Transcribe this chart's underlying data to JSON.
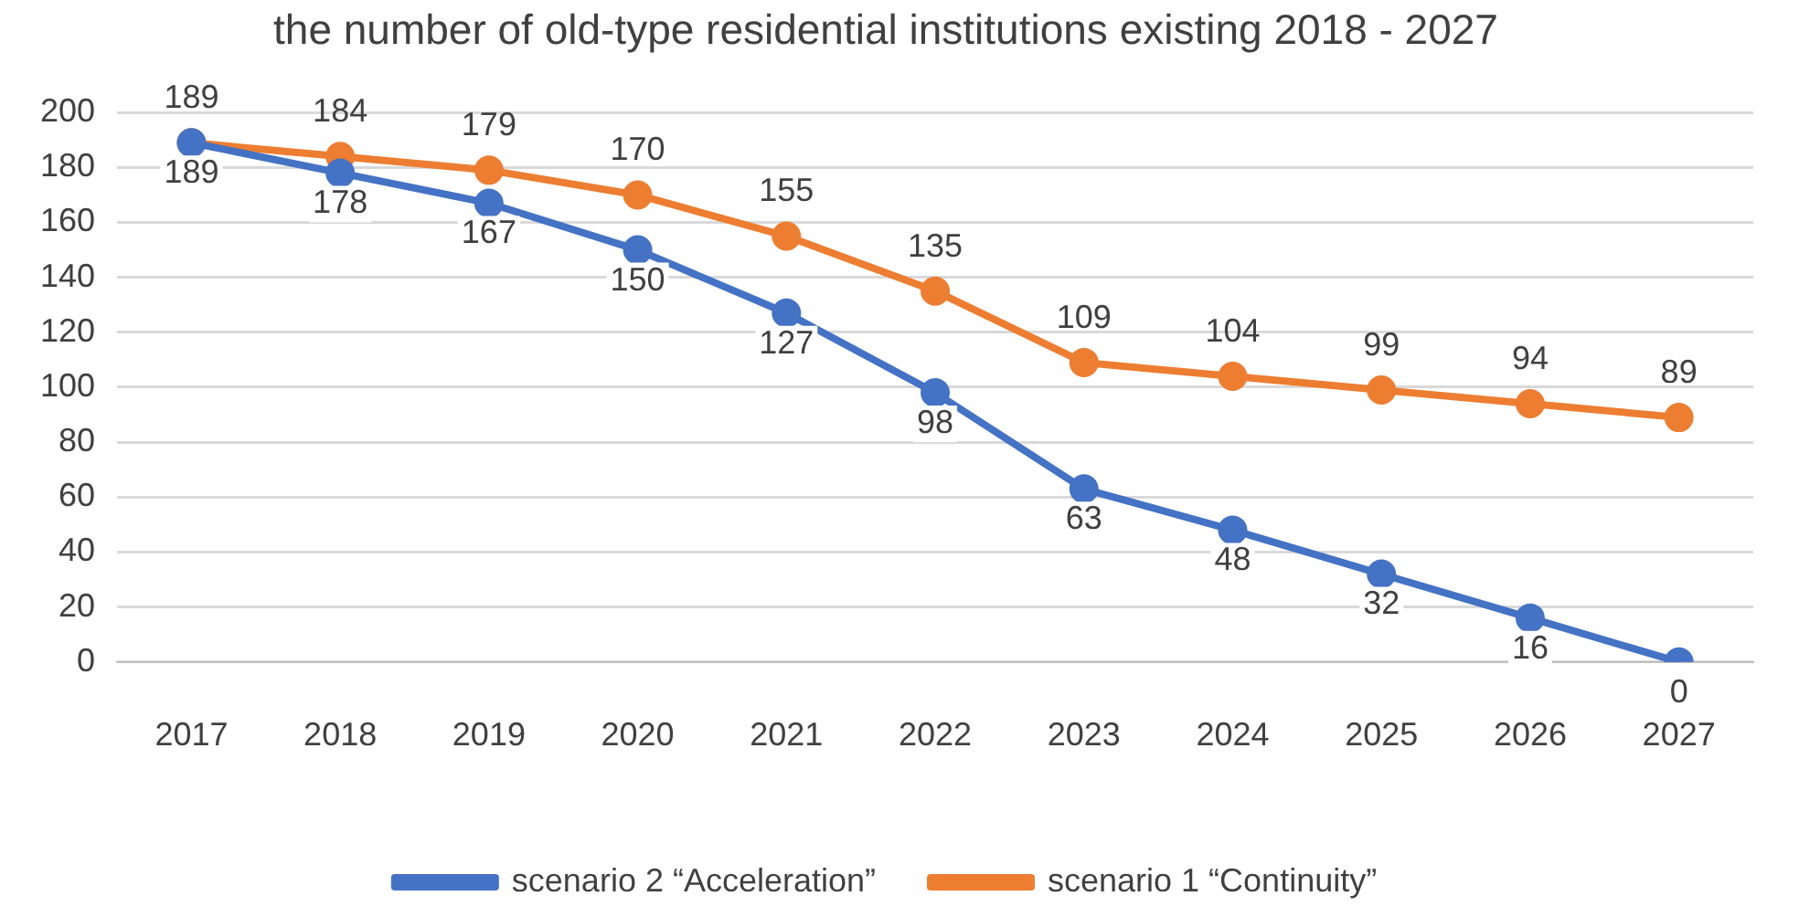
{
  "chart_data": {
    "type": "line",
    "title": "the number of old-type residential institutions existing 2018 - 2027",
    "categories": [
      "2017",
      "2018",
      "2019",
      "2020",
      "2021",
      "2022",
      "2023",
      "2024",
      "2025",
      "2026",
      "2027"
    ],
    "series": [
      {
        "name": "scenario 2 “Acceleration”",
        "color": "#4472c4",
        "values": [
          189,
          178,
          167,
          150,
          127,
          98,
          63,
          48,
          32,
          16,
          0
        ]
      },
      {
        "name": "scenario 1 “Continuity”",
        "color": "#ed7d31",
        "values": [
          189,
          184,
          179,
          170,
          155,
          135,
          109,
          104,
          99,
          94,
          89
        ]
      }
    ],
    "ylim": [
      0,
      200
    ],
    "yticks": [
      0,
      20,
      40,
      60,
      80,
      100,
      120,
      140,
      160,
      180,
      200
    ],
    "grid": "y",
    "legend": "bottom",
    "marker": "circle",
    "line_style": "solid",
    "data_labels": true
  }
}
